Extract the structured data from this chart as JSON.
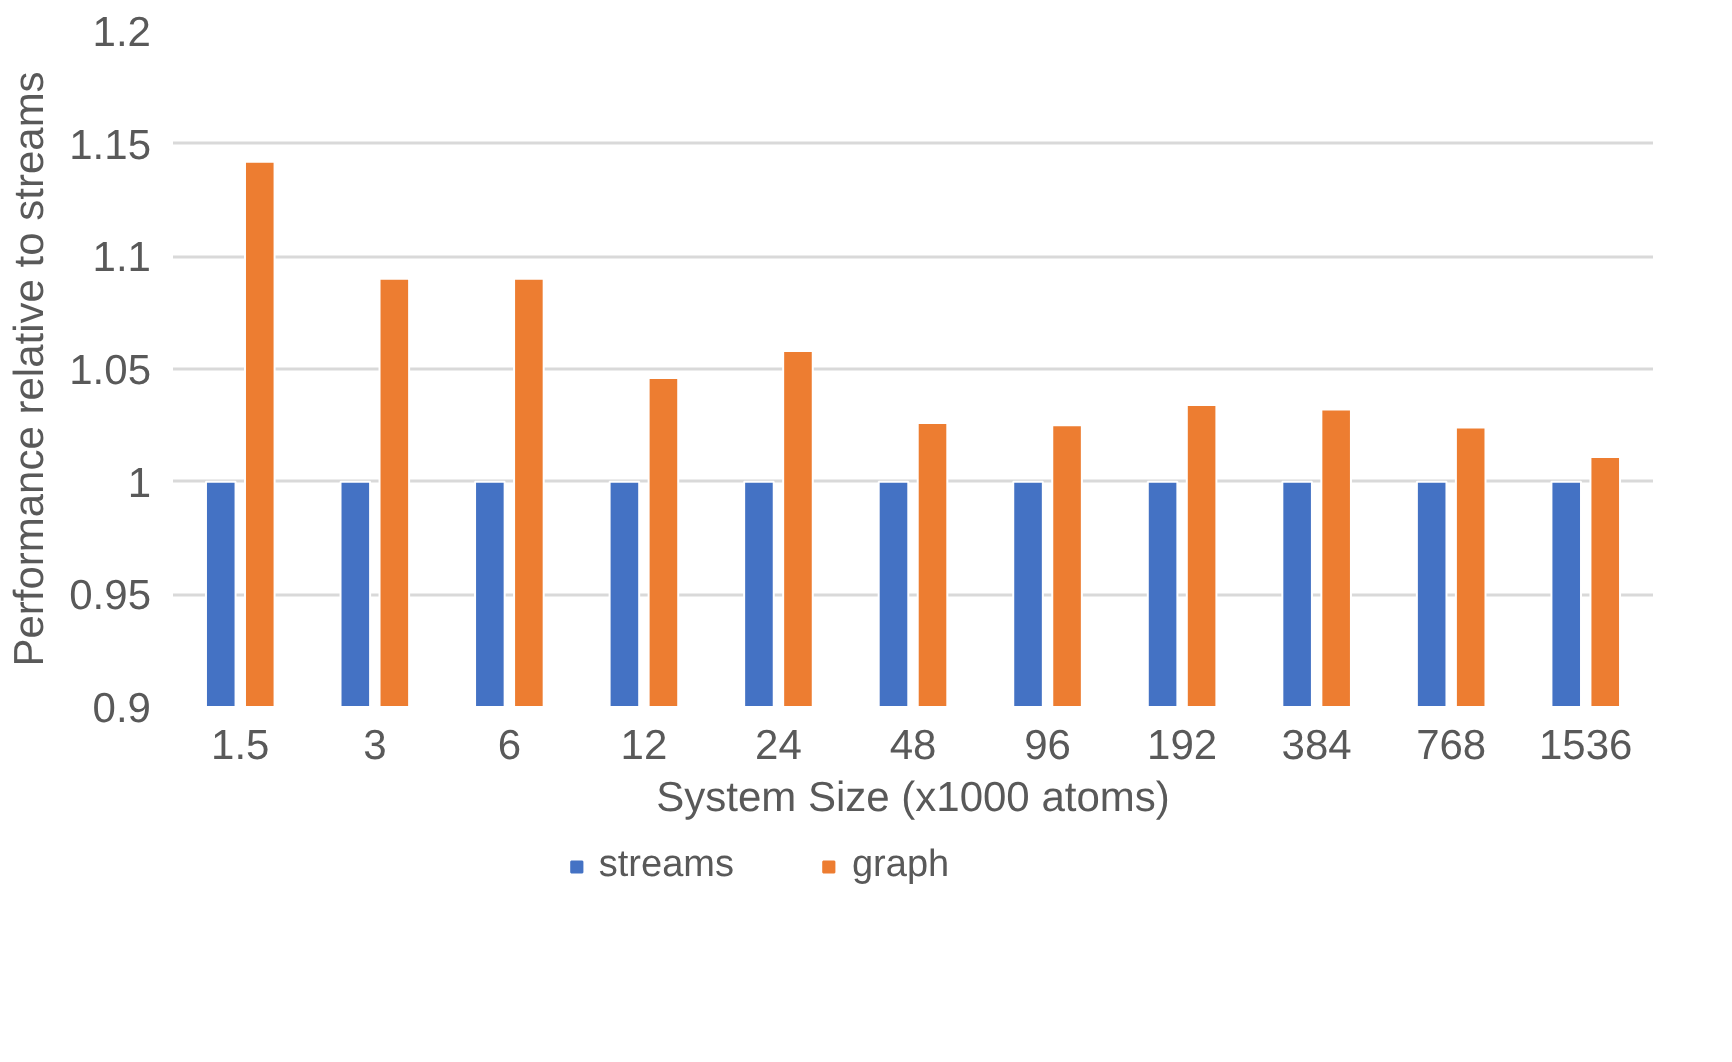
{
  "chart_data": {
    "type": "bar",
    "xlabel": "System Size (x1000 atoms)",
    "ylabel": "Performance relative to streams",
    "categories": [
      "1.5",
      "3",
      "6",
      "12",
      "24",
      "48",
      "96",
      "192",
      "384",
      "768",
      "1536"
    ],
    "series": [
      {
        "name": "streams",
        "color": "#4472c4",
        "values": [
          1,
          1,
          1,
          1,
          1,
          1,
          1,
          1,
          1,
          1,
          1
        ]
      },
      {
        "name": "graph",
        "color": "#ed7d31",
        "values": [
          1.142,
          1.09,
          1.09,
          1.046,
          1.058,
          1.026,
          1.025,
          1.034,
          1.032,
          1.024,
          1.011
        ]
      }
    ],
    "ylim": [
      0.9,
      1.2
    ],
    "yticks": [
      0.9,
      0.95,
      1,
      1.05,
      1.1,
      1.15,
      1.2
    ],
    "grid": "y",
    "legend": "bottom"
  }
}
